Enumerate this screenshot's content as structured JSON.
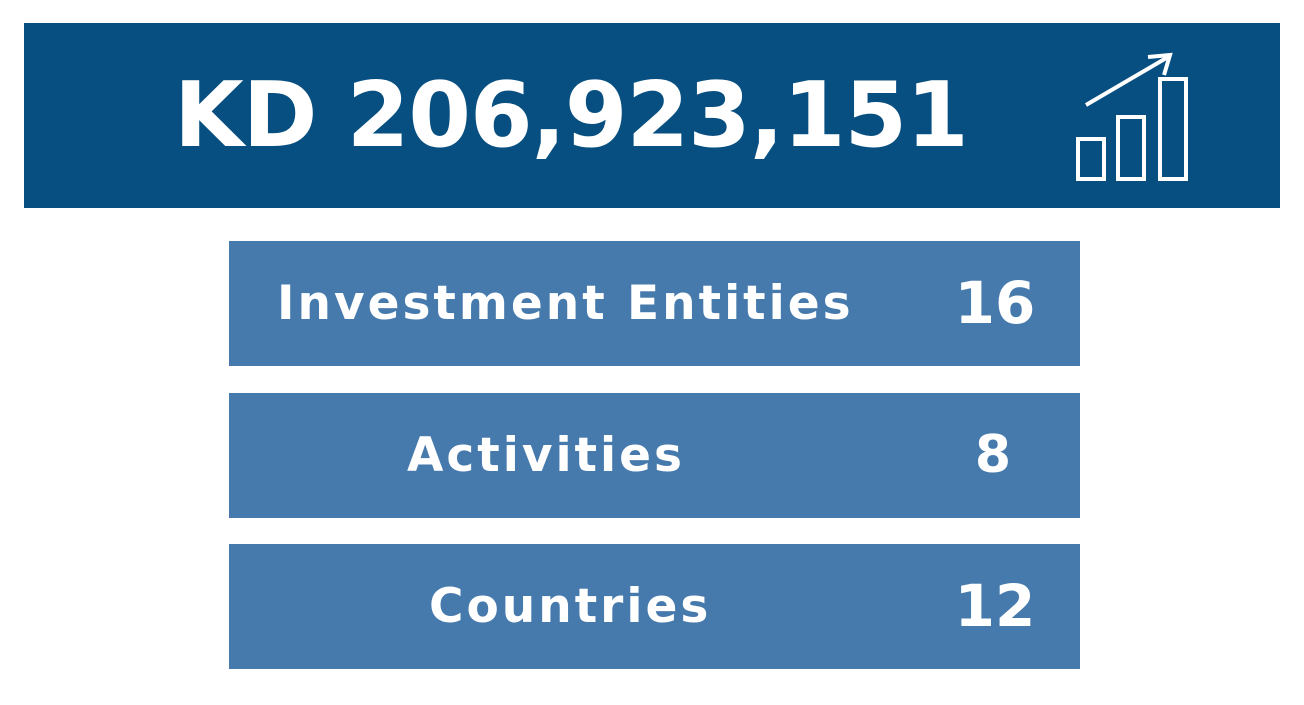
{
  "banner": {
    "amount": "KD 206,923,151",
    "icon": "growth-chart-icon",
    "background_color": "#074f80"
  },
  "stats": [
    {
      "label": "Investment Entities",
      "value": "16"
    },
    {
      "label": "Activities",
      "value": "8"
    },
    {
      "label": "Countries",
      "value": "12"
    }
  ],
  "colors": {
    "stat_background": "#467aac",
    "text": "#ffffff"
  }
}
